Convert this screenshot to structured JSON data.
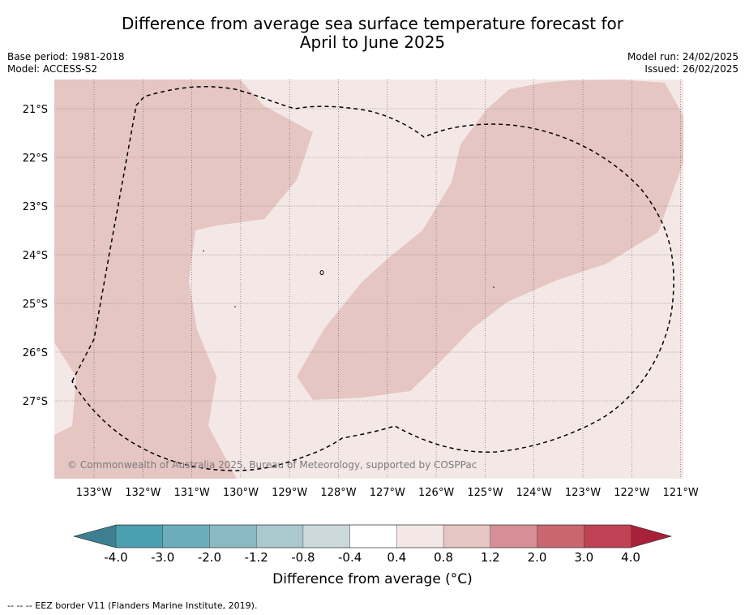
{
  "title_line1": "Difference from average sea surface temperature forecast for",
  "title_line2": "April to June 2025",
  "base_period": "Base period: 1981-2018",
  "model": "Model: ACCESS-S2",
  "model_run": "Model run: 24/02/2025",
  "issued": "Issued: 26/02/2025",
  "copyright": "© Commonwealth of Australia 2025, Bureau of Meteorology, supported by COSPPac",
  "footnote": "--  --  -- EEZ border V11 (Flanders Marine Institute, 2019).",
  "map": {
    "lat_labels": [
      "21°S",
      "22°S",
      "23°S",
      "24°S",
      "25°S",
      "26°S",
      "27°S"
    ],
    "lon_labels": [
      "133°W",
      "132°W",
      "131°W",
      "130°W",
      "129°W",
      "128°W",
      "127°W",
      "126°W",
      "125°W",
      "124°W",
      "123°W",
      "122°W",
      "121°W"
    ],
    "colors": {
      "light_warm": "#f4e8e7",
      "warm": "#e6c6c2",
      "eez_line": "#000000"
    },
    "anomaly_classes": [
      "0.4 to 0.8",
      "0.8 to 1.2"
    ]
  },
  "colorbar": {
    "title": "Difference from average (°C)",
    "tick_labels": [
      "-4.0",
      "-3.0",
      "-2.0",
      "-1.2",
      "-0.8",
      "-0.4",
      "0.4",
      "0.8",
      "1.2",
      "2.0",
      "3.0",
      "4.0"
    ],
    "colors": [
      "#4a9fb0",
      "#6cadbb",
      "#8bb9c4",
      "#a9c9ce",
      "#cbd9dd",
      "#ffffff",
      "#f4e8e7",
      "#e6c6c2",
      "#d68f96",
      "#c9676f",
      "#be4253"
    ],
    "under_color": "#3d8091",
    "over_color": "#a8213a"
  }
}
